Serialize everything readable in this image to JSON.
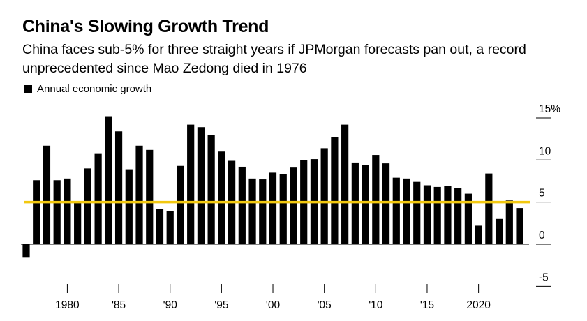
{
  "chart_data": {
    "type": "bar",
    "title": "China's Slowing Growth Trend",
    "subtitle": "China faces sub-5% for three straight years if JPMorgan forecasts pan out, a record unprecedented since Mao Zedong died in 1976",
    "legend": "Annual economic growth",
    "legend_position": "top-left",
    "unit": "%",
    "x": [
      1976,
      1977,
      1978,
      1979,
      1980,
      1981,
      1982,
      1983,
      1984,
      1985,
      1986,
      1987,
      1988,
      1989,
      1990,
      1991,
      1992,
      1993,
      1994,
      1995,
      1996,
      1997,
      1998,
      1999,
      2000,
      2001,
      2002,
      2003,
      2004,
      2005,
      2006,
      2007,
      2008,
      2009,
      2010,
      2011,
      2012,
      2013,
      2014,
      2015,
      2016,
      2017,
      2018,
      2019,
      2020,
      2021,
      2022,
      2023,
      2024
    ],
    "values": [
      -1.6,
      7.6,
      11.7,
      7.6,
      7.8,
      5.1,
      9.0,
      10.8,
      15.2,
      13.4,
      8.9,
      11.7,
      11.2,
      4.2,
      3.9,
      9.3,
      14.2,
      13.9,
      13.0,
      11.0,
      9.9,
      9.2,
      7.8,
      7.7,
      8.5,
      8.3,
      9.1,
      10.0,
      10.1,
      11.4,
      12.7,
      14.2,
      9.7,
      9.4,
      10.6,
      9.6,
      7.9,
      7.8,
      7.4,
      7.0,
      6.8,
      6.9,
      6.7,
      6.0,
      2.2,
      8.4,
      3.0,
      5.2,
      4.3
    ],
    "x_ticks": [
      1980,
      1985,
      1990,
      1995,
      2000,
      2005,
      2010,
      2015,
      2020
    ],
    "x_tick_labels": [
      "1980",
      "'85",
      "'90",
      "'95",
      "'00",
      "'05",
      "'10",
      "'15",
      "2020"
    ],
    "y_ticks": [
      -5,
      0,
      5,
      10,
      15
    ],
    "y_tick_labels": [
      "-5",
      "0",
      "5",
      "10",
      "15%"
    ],
    "ylim": [
      -5,
      15
    ],
    "reference_line": {
      "value": 5,
      "color": "#f2c80f"
    },
    "bar_color": "#000000",
    "grid": false
  }
}
